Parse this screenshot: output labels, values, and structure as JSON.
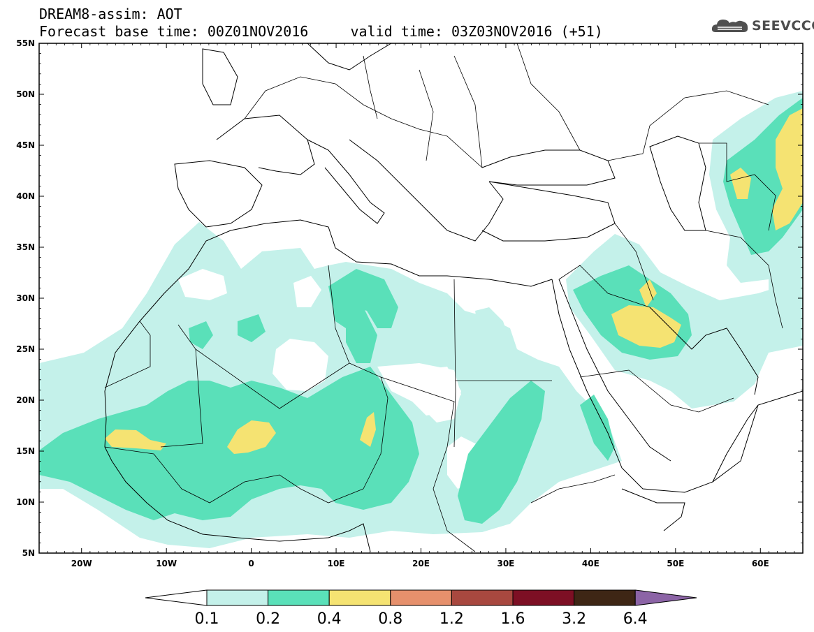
{
  "header": {
    "title_line1": "DREAM8-assim: AOT",
    "title_line2": "Forecast base time: 00Z01NOV2016     valid time: 03Z03NOV2016 (+51)",
    "logo_text": "SEEVCCC"
  },
  "map": {
    "lat_labels": [
      "55N",
      "50N",
      "45N",
      "40N",
      "35N",
      "30N",
      "25N",
      "20N",
      "15N",
      "10N",
      "5N"
    ],
    "lon_labels": [
      "20W",
      "10W",
      "0",
      "10E",
      "20E",
      "30E",
      "40E",
      "50E",
      "60E"
    ],
    "lon_range": [
      -25,
      65
    ],
    "lat_range": [
      5,
      55
    ]
  },
  "colorbar": {
    "thresholds": [
      "0.1",
      "0.2",
      "0.4",
      "0.8",
      "1.2",
      "1.6",
      "3.2",
      "6.4"
    ],
    "colors": [
      "#ffffff",
      "#c4f1ea",
      "#5ae0b9",
      "#f5e372",
      "#e6906c",
      "#a8483f",
      "#7d0f24",
      "#3e2615",
      "#8c64a6"
    ]
  },
  "chart_data": {
    "type": "heatmap",
    "title": "DREAM8-assim: AOT",
    "subtitle": "Forecast base time: 00Z01NOV2016     valid time: 03Z03NOV2016 (+51)",
    "x_ticks": [
      "20W",
      "10W",
      "0",
      "10E",
      "20E",
      "30E",
      "40E",
      "50E",
      "60E"
    ],
    "y_ticks": [
      "5N",
      "10N",
      "15N",
      "20N",
      "25N",
      "30N",
      "35N",
      "40N",
      "45N",
      "50N",
      "55N"
    ],
    "xlim": [
      -25,
      65
    ],
    "ylim": [
      5,
      55
    ],
    "levels": [
      0.1,
      0.2,
      0.4,
      0.8,
      1.2,
      1.6,
      3.2,
      6.4
    ],
    "regions": [
      {
        "level": "0.4-0.8",
        "lon": -13,
        "lat": 16
      },
      {
        "level": "0.4-0.8",
        "lon": 0,
        "lat": 16
      },
      {
        "level": "0.4-0.8",
        "lon": 14,
        "lat": 16
      },
      {
        "level": "0.4-0.8",
        "lon": 46,
        "lat": 27
      },
      {
        "level": "0.4-0.8",
        "lon": 63,
        "lat": 43
      },
      {
        "level": "0.2-0.4",
        "lon": 0,
        "lat": 16
      },
      {
        "level": "0.2-0.4",
        "lon": 30,
        "lat": 14
      },
      {
        "level": "0.2-0.4",
        "lon": 47,
        "lat": 28
      },
      {
        "level": "0.1-0.2",
        "lon": 5,
        "lat": 22
      }
    ]
  }
}
